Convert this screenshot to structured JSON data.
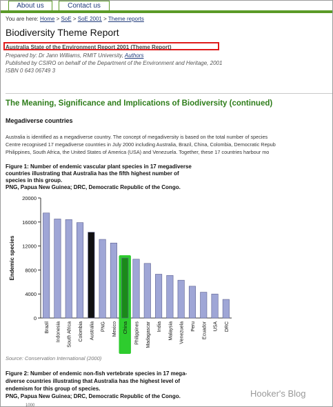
{
  "nav": {
    "tabs": [
      {
        "label": "About us"
      },
      {
        "label": "Contact us"
      }
    ]
  },
  "breadcrumb": {
    "prefix": "You are here:",
    "items": [
      "Home",
      "SoE",
      "SoE 2001",
      "Theme reports"
    ],
    "separator": ">"
  },
  "page": {
    "title": "Biodiversity Theme Report",
    "subtitle": "Australia State of the Environment Report 2001 (Theme Report)",
    "prepared_prefix": "Prepared by: Dr Jann Williams, RMIT University,",
    "prepared_link": "Authors",
    "published": "Published by CSIRO on behalf of the Department of the Environment and Heritage, 2001",
    "isbn": "ISBN 0 643 06749 3"
  },
  "section": {
    "heading": "The Meaning, Significance and Implications of Biodiversity (continued)",
    "subheading": "Megadiverse countries",
    "para": [
      "Australia is identified as a megadiverse country. The concept of megadiversity is based on the total number of species",
      "Centre recognised 17 megadiverse countries in July 2000 including Australia, Brazil, China, Colombia, Democratic Repub",
      "Philippines, South Africa, the United States of America (USA) and Venezuela. Together, these 17 countries harbour mo"
    ]
  },
  "figure1": {
    "caption": [
      "Figure 1: Number of endemic vascular plant species in 17 megadiverse",
      "countries illustrating that Australia has the fifth highest number of",
      "species in this group.",
      "PNG, Papua New Guinea; DRC, Democratic Republic of the Congo."
    ],
    "source": "Source: Conservation International (2000)"
  },
  "figure2": {
    "caption": [
      "Figure 2: Number of endemic non-fish vertebrate species in 17 mega-",
      "diverse countries illustrating that Australia has the highest level of",
      "endemism for this group of species.",
      "PNG, Papua New Guinea; DRC, Democratic Republic of the Congo."
    ],
    "stub_text": "1000"
  },
  "watermark": "Hooker's Blog",
  "colors": {
    "bar": "#9fa6d6",
    "australia": "#111111",
    "china_highlight": "#2ecc2e",
    "heading": "#2e7d1a",
    "link": "#1f3a7a",
    "nav": "#5a9a27"
  },
  "chart_data": {
    "type": "bar",
    "ylabel": "Endemic species",
    "ylim": [
      0,
      20000
    ],
    "yticks": [
      0,
      4000,
      8000,
      12000,
      16000,
      20000
    ],
    "categories": [
      "Brazil",
      "Indonesia",
      "South Africa",
      "Colombia",
      "Australia",
      "PNG",
      "Mexico",
      "China",
      "Philippines",
      "Madagascar",
      "India",
      "Malaysia",
      "Venezuela",
      "Peru",
      "Ecuador",
      "USA",
      "DRC"
    ],
    "values": [
      17500,
      16500,
      16400,
      15900,
      14300,
      13100,
      12500,
      10000,
      9800,
      9100,
      7300,
      7100,
      6300,
      5300,
      4300,
      4000,
      3100
    ],
    "highlight": {
      "Australia": "black",
      "China": "green box"
    }
  }
}
